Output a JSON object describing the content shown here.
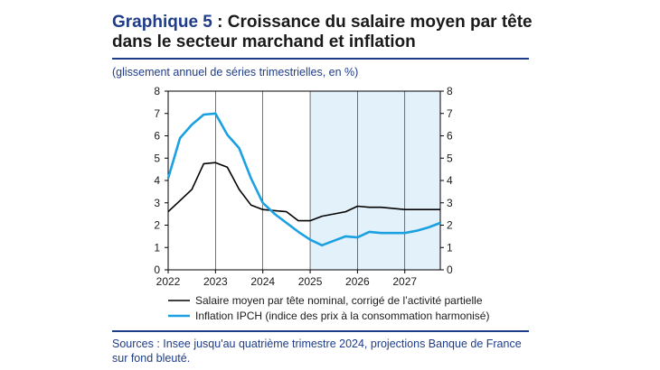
{
  "header": {
    "title_label": "Graphique 5",
    "title_rest": " : Croissance du salaire moyen par tête dans le secteur marchand et inflation",
    "subtitle": "(glissement annuel de séries trimestrielles, en %)"
  },
  "footer": {
    "sources": "Sources : Insee jusqu'au quatrième trimestre 2024, projections Banque de France sur fond bleuté."
  },
  "chart_data": {
    "type": "line",
    "x_tick_labels": [
      "2022",
      "2023",
      "2024",
      "2025",
      "2026",
      "2027"
    ],
    "y_tick_labels": [
      "0",
      "1",
      "2",
      "3",
      "4",
      "5",
      "6",
      "7",
      "8"
    ],
    "ylim": [
      0,
      8
    ],
    "xlim": [
      2022,
      2027.75
    ],
    "right_axis_mirrors_left": true,
    "projection_shading": {
      "from": "2025",
      "to": "end",
      "color": "#e3f1fa"
    },
    "grid": {
      "vertical_year_lines": true,
      "horizontal": false
    },
    "legend_placement": "bottom",
    "series": [
      {
        "name": "Salaire moyen par tête nominal, corrigé de l’activité partielle",
        "color": "#000000",
        "x": [
          "2022-Q1",
          "2022-Q2",
          "2022-Q3",
          "2022-Q4",
          "2023-Q1",
          "2023-Q2",
          "2023-Q3",
          "2023-Q4",
          "2024-Q1",
          "2024-Q2",
          "2024-Q3",
          "2024-Q4",
          "2025-Q1",
          "2025-Q2",
          "2025-Q3",
          "2025-Q4",
          "2026-Q1",
          "2026-Q2",
          "2026-Q3",
          "2026-Q4",
          "2027-Q1",
          "2027-Q2",
          "2027-Q3",
          "2027-Q4"
        ],
        "values": [
          2.6,
          3.1,
          3.6,
          4.75,
          4.8,
          4.6,
          3.6,
          2.9,
          2.7,
          2.65,
          2.6,
          2.2,
          2.2,
          2.4,
          2.5,
          2.6,
          2.85,
          2.8,
          2.8,
          2.75,
          2.7,
          2.7,
          2.7,
          2.7
        ]
      },
      {
        "name": "Inflation IPCH (indice des prix à la consommation harmonisé)",
        "color": "#1ba1e2",
        "x": [
          "2022-Q1",
          "2022-Q2",
          "2022-Q3",
          "2022-Q4",
          "2023-Q1",
          "2023-Q2",
          "2023-Q3",
          "2023-Q4",
          "2024-Q1",
          "2024-Q2",
          "2024-Q3",
          "2024-Q4",
          "2025-Q1",
          "2025-Q2",
          "2025-Q3",
          "2025-Q4",
          "2026-Q1",
          "2026-Q2",
          "2026-Q3",
          "2026-Q4",
          "2027-Q1",
          "2027-Q2",
          "2027-Q3",
          "2027-Q4"
        ],
        "values": [
          4.1,
          5.9,
          6.5,
          6.95,
          7.0,
          6.05,
          5.45,
          4.1,
          3.0,
          2.5,
          2.1,
          1.7,
          1.35,
          1.1,
          1.3,
          1.5,
          1.45,
          1.7,
          1.65,
          1.65,
          1.65,
          1.75,
          1.9,
          2.1
        ]
      }
    ]
  }
}
